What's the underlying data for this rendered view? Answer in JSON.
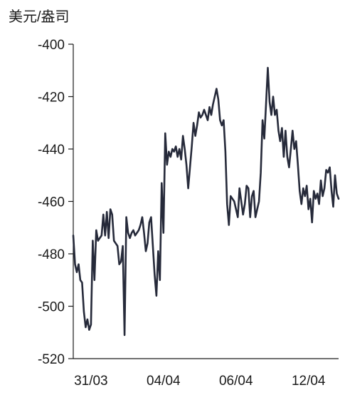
{
  "chart_data": {
    "type": "line",
    "unit_label": "美元/盎司",
    "ylim": [
      -520,
      -400
    ],
    "yticks": [
      -400,
      -420,
      -440,
      -460,
      -480,
      -500,
      -520
    ],
    "xlim": [
      0,
      150
    ],
    "xticks": [
      {
        "x": 10,
        "label": "31/03"
      },
      {
        "x": 51,
        "label": "04/04"
      },
      {
        "x": 92,
        "label": "06/04"
      },
      {
        "x": 133,
        "label": "12/04"
      }
    ],
    "grid": false,
    "line_color": "#262a3a",
    "series": [
      {
        "x": [
          0,
          1,
          2,
          3,
          4,
          5,
          6,
          7,
          8,
          9,
          10,
          11,
          12,
          13,
          14,
          15,
          16,
          17,
          18,
          19,
          20,
          21,
          22,
          23,
          24,
          25,
          26,
          27,
          28,
          29,
          30,
          31,
          32,
          33,
          34,
          35,
          36,
          37,
          38,
          39,
          40,
          41,
          42,
          43,
          44,
          45,
          46,
          47,
          48,
          49,
          50,
          51,
          52,
          53,
          54,
          55,
          56,
          57,
          58,
          59,
          60,
          61,
          62,
          63,
          64,
          65,
          66,
          67,
          68,
          69,
          70,
          71,
          72,
          73,
          74,
          75,
          76,
          77,
          78,
          79,
          80,
          81,
          82,
          83,
          84,
          85,
          86,
          87,
          88,
          89,
          90,
          91,
          92,
          93,
          94,
          95,
          96,
          97,
          98,
          99,
          100,
          101,
          102,
          103,
          104,
          105,
          106,
          107,
          108,
          109,
          110,
          111,
          112,
          113,
          114,
          115,
          116,
          117,
          118,
          119,
          120,
          121,
          122,
          123,
          124,
          125,
          126,
          127,
          128,
          129,
          130,
          131,
          132,
          133,
          134,
          135,
          136,
          137,
          138,
          139,
          140,
          141,
          142,
          143,
          144,
          145,
          146,
          147,
          148,
          149,
          150
        ],
        "y": [
          -473,
          -484,
          -487,
          -484,
          -490,
          -491,
          -502,
          -508,
          -505,
          -509,
          -507,
          -475,
          -490,
          -471,
          -475,
          -474,
          -473,
          -465,
          -473,
          -464,
          -474,
          -463,
          -465,
          -475,
          -476,
          -477,
          -484,
          -483,
          -477,
          -511,
          -466,
          -472,
          -474,
          -472,
          -471,
          -473,
          -472,
          -471,
          -469,
          -466,
          -472,
          -479,
          -476,
          -468,
          -466,
          -477,
          -488,
          -496,
          -479,
          -490,
          -453,
          -472,
          -434,
          -446,
          -441,
          -443,
          -440,
          -441,
          -439,
          -443,
          -440,
          -444,
          -435,
          -440,
          -446,
          -455,
          -447,
          -439,
          -430,
          -435,
          -431,
          -426,
          -428,
          -427,
          -425,
          -427,
          -429,
          -424,
          -427,
          -423,
          -420,
          -417,
          -421,
          -429,
          -431,
          -429,
          -441,
          -461,
          -469,
          -458,
          -459,
          -460,
          -463,
          -466,
          -455,
          -460,
          -465,
          -461,
          -454,
          -455,
          -466,
          -458,
          -456,
          -466,
          -463,
          -460,
          -449,
          -429,
          -436,
          -423,
          -409,
          -422,
          -427,
          -420,
          -427,
          -425,
          -433,
          -437,
          -432,
          -443,
          -433,
          -443,
          -447,
          -440,
          -433,
          -440,
          -437,
          -446,
          -456,
          -461,
          -455,
          -458,
          -454,
          -463,
          -459,
          -468,
          -456,
          -459,
          -457,
          -461,
          -452,
          -458,
          -455,
          -448,
          -449,
          -447,
          -456,
          -462,
          -450,
          -457,
          -459
        ]
      }
    ]
  }
}
